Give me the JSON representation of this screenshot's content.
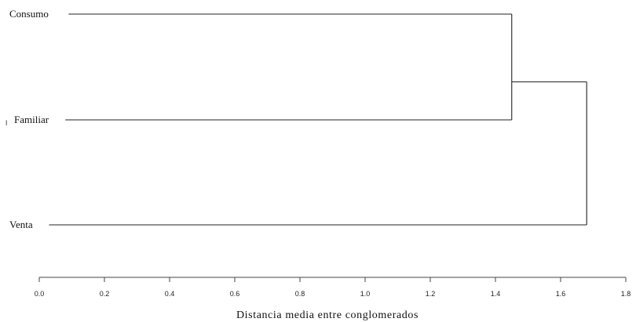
{
  "chart_data": {
    "type": "dendrogram",
    "orientation": "horizontal",
    "leaves": [
      {
        "label": "Consumo",
        "start": 0.09
      },
      {
        "label": "Familiar",
        "start": 0.08
      },
      {
        "label": "Venta",
        "start": 0.03
      }
    ],
    "merges": [
      {
        "members": [
          "Consumo",
          "Familiar"
        ],
        "distance": 1.45
      },
      {
        "members": [
          "Consumo-Familiar",
          "Venta"
        ],
        "distance": 1.68
      }
    ],
    "xlim": [
      0.0,
      1.8
    ],
    "xticks": [
      "0.0",
      "0.2",
      "0.4",
      "0.6",
      "0.8",
      "1.0",
      "1.2",
      "1.4",
      "1.6",
      "1.8"
    ],
    "xlabel": "Distancia media entre conglomerados",
    "grid": false
  }
}
